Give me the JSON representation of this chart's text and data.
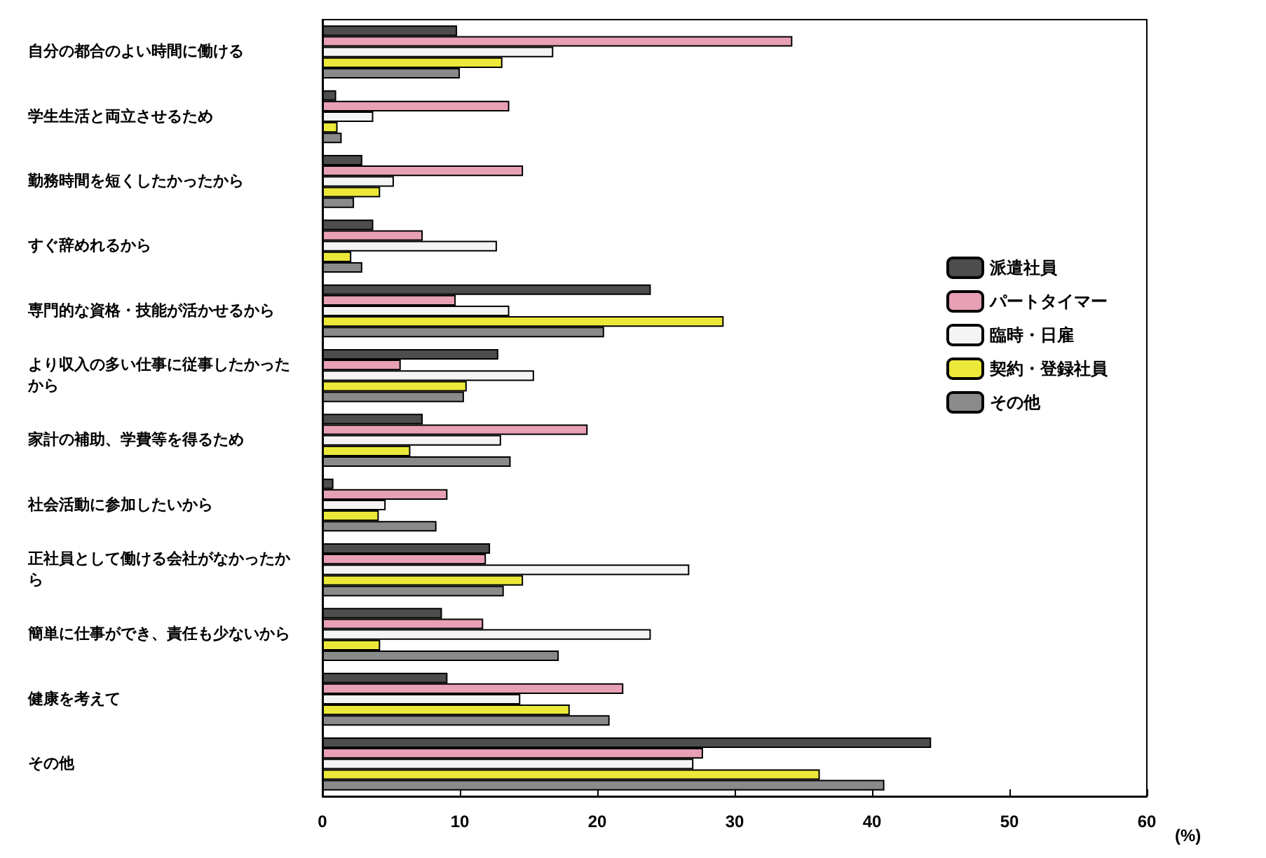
{
  "chart_data": {
    "type": "bar",
    "orientation": "horizontal",
    "xlabel": "(%)",
    "categories": [
      "自分の都合のよい時間に働ける",
      "学生生活と両立させるため",
      "勤務時間を短くしたかったから",
      "すぐ辞めれるから",
      "専門的な資格・技能が活かせるから",
      "より収入の多い仕事に従事したかったから",
      "家計の補助、学費等を得るため",
      "社会活動に参加したいから",
      "正社員として働ける会社がなかったから",
      "簡単に仕事ができ、責任も少ないから",
      "健康を考えて",
      "その他"
    ],
    "series": [
      {
        "name": "派遣社員",
        "color": "#4d4d4d",
        "values": [
          9.8,
          1.0,
          2.9,
          3.7,
          23.9,
          12.8,
          7.3,
          0.8,
          12.2,
          8.7,
          9.1,
          44.3
        ]
      },
      {
        "name": "パートタイマー",
        "color": "#e8a0b4",
        "values": [
          34.2,
          13.6,
          14.6,
          7.3,
          9.7,
          5.7,
          19.3,
          9.1,
          11.9,
          11.7,
          21.9,
          27.7
        ]
      },
      {
        "name": "臨時・日雇",
        "color": "#f4f4f4",
        "values": [
          16.8,
          3.7,
          5.2,
          12.7,
          13.6,
          15.4,
          13.0,
          4.6,
          26.7,
          23.9,
          14.4,
          27.0
        ]
      },
      {
        "name": "契約・登録社員",
        "color": "#ece83a",
        "values": [
          13.1,
          1.1,
          4.2,
          2.1,
          29.2,
          10.5,
          6.4,
          4.1,
          14.6,
          4.2,
          18.0,
          36.2
        ]
      },
      {
        "name": "その他",
        "color": "#8a8a8a",
        "values": [
          10.0,
          1.4,
          2.3,
          2.9,
          20.5,
          10.3,
          13.7,
          8.3,
          13.2,
          17.2,
          20.9,
          40.9
        ]
      }
    ],
    "xlim": [
      0,
      60
    ],
    "xticks": [
      0,
      10,
      20,
      30,
      40,
      50,
      60
    ],
    "grid": false,
    "legend": "right"
  }
}
